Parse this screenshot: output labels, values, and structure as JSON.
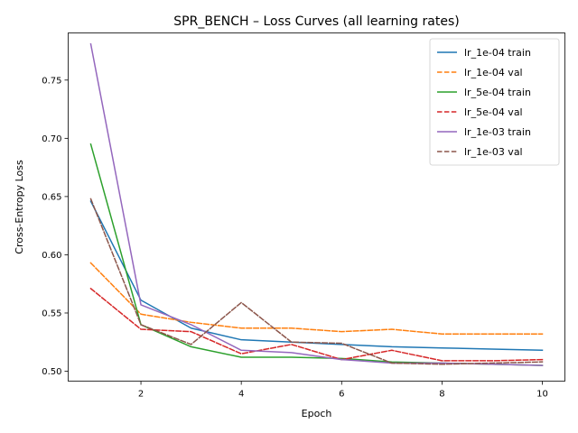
{
  "chart_data": {
    "type": "line",
    "title": "SPR_BENCH – Loss Curves (all learning rates)",
    "xlabel": "Epoch",
    "ylabel": "Cross-Entropy Loss",
    "xlim": [
      0.55,
      10.45
    ],
    "ylim": [
      0.4915,
      0.7905
    ],
    "xticks": [
      2,
      4,
      6,
      8,
      10
    ],
    "yticks": [
      0.5,
      0.55,
      0.6,
      0.65,
      0.7,
      0.75
    ],
    "ytick_labels": [
      "0.50",
      "0.55",
      "0.60",
      "0.65",
      "0.70",
      "0.75"
    ],
    "grid": false,
    "legend_position": "top-right",
    "x": [
      1,
      2,
      3,
      4,
      5,
      6,
      7,
      8,
      9,
      10
    ],
    "series": [
      {
        "name": "lr_1e-04 train",
        "color": "#1f77b4",
        "style": "solid",
        "values": [
          0.646,
          0.561,
          0.537,
          0.527,
          0.525,
          0.523,
          0.521,
          0.52,
          0.519,
          0.518
        ]
      },
      {
        "name": "lr_1e-04 val",
        "color": "#ff7f0e",
        "style": "dashed",
        "values": [
          0.593,
          0.549,
          0.542,
          0.537,
          0.537,
          0.534,
          0.536,
          0.532,
          0.532,
          0.532
        ]
      },
      {
        "name": "lr_5e-04 train",
        "color": "#2ca02c",
        "style": "solid",
        "values": [
          0.695,
          0.54,
          0.521,
          0.512,
          0.512,
          0.511,
          0.508,
          0.507,
          0.506,
          0.505
        ]
      },
      {
        "name": "lr_5e-04 val",
        "color": "#d62728",
        "style": "dashed",
        "values": [
          0.571,
          0.536,
          0.534,
          0.515,
          0.523,
          0.51,
          0.518,
          0.509,
          0.509,
          0.51
        ]
      },
      {
        "name": "lr_1e-03 train",
        "color": "#9467bd",
        "style": "solid",
        "values": [
          0.781,
          0.557,
          0.54,
          0.518,
          0.516,
          0.51,
          0.507,
          0.507,
          0.506,
          0.505
        ]
      },
      {
        "name": "lr_1e-03 val",
        "color": "#8c564b",
        "style": "dashed",
        "values": [
          0.648,
          0.54,
          0.523,
          0.559,
          0.525,
          0.524,
          0.507,
          0.506,
          0.507,
          0.508
        ]
      }
    ]
  }
}
